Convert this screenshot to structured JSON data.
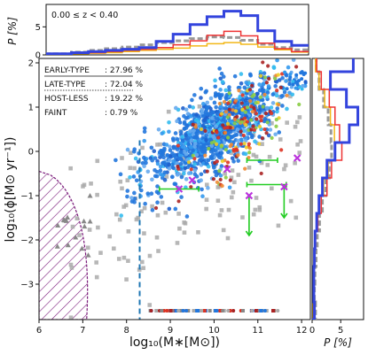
{
  "chart_data": {
    "type": "scatter",
    "annotation_z": "0.00 ≤ z < 0.40",
    "xlabel": "log₁₀(M∗[M⊙])",
    "ylabel": "log₁₀(ϕ[M⊙ yr⁻¹])",
    "top_ylabel": "P [%]",
    "right_xlabel": "P [%]",
    "xlim": [
      6,
      12.2
    ],
    "ylim": [
      -3.8,
      2.1
    ],
    "top_ylim": [
      0,
      9
    ],
    "right_xlim": [
      0,
      9
    ],
    "x_ticks": [
      {
        "v": 6,
        "label": "6"
      },
      {
        "v": 7,
        "label": "7"
      },
      {
        "v": 8,
        "label": "8"
      },
      {
        "v": 9,
        "label": "9"
      },
      {
        "v": 10,
        "label": "10"
      },
      {
        "v": 11,
        "label": "11"
      },
      {
        "v": 12,
        "label": "12"
      }
    ],
    "y_ticks": [
      {
        "v": -3,
        "label": "−3"
      },
      {
        "v": -2,
        "label": "−2"
      },
      {
        "v": -1,
        "label": "−1"
      },
      {
        "v": 0,
        "label": "0"
      },
      {
        "v": 1,
        "label": "1"
      },
      {
        "v": 2,
        "label": "2"
      }
    ],
    "top_y_ticks": [
      {
        "v": 0,
        "label": "0"
      },
      {
        "v": 5,
        "label": "5"
      }
    ],
    "right_x_ticks": [
      {
        "v": 0,
        "label": "0"
      },
      {
        "v": 5,
        "label": "5"
      }
    ],
    "legend": [
      {
        "label": "EARLY-TYPE",
        "value": ": 27.96  %",
        "style": "solid"
      },
      {
        "label": "LATE-TYPE",
        "value": ":  72.04 %",
        "style": "solid"
      },
      {
        "label": "HOST-LESS",
        "value": ": 19.22 %",
        "style": "dotted"
      },
      {
        "label": "FAINT",
        "value": ":  0.79  %",
        "style": "none"
      }
    ],
    "mass_completeness_x": 8.3,
    "colors": {
      "blue": "#3344dd",
      "grey": "#999999",
      "red": "#ee3333",
      "yellow": "#f2b818",
      "purple": "#7a1a7a",
      "green": "#22cc22",
      "magenta": "#bb33dd",
      "dash": "#1f77b4",
      "points_blue": "#2277dd",
      "points_cyan": "#33bbee"
    },
    "highlight_crosses": [
      {
        "x": 9.2,
        "y": -0.85
      },
      {
        "x": 10.8,
        "y": -1.0
      },
      {
        "x": 11.6,
        "y": -0.8
      },
      {
        "x": 11.9,
        "y": -0.15
      },
      {
        "x": 10.3,
        "y": -0.4
      },
      {
        "x": 9.5,
        "y": -0.65
      }
    ],
    "green_points": [
      {
        "x": 9.2,
        "y": -0.85,
        "xerr": 0.45,
        "up": 0,
        "down": 0
      },
      {
        "x": 10.8,
        "y": -1.0,
        "xerr": 0,
        "up": 0,
        "down": 0.9
      },
      {
        "x": 11.6,
        "y": -0.8,
        "xerr": 0.0,
        "up": 0,
        "down": 0.7
      },
      {
        "x": 11.2,
        "y": -0.75,
        "xerr": 0.45,
        "up": 0,
        "down": 0
      },
      {
        "x": 11.1,
        "y": -0.2,
        "xerr": 0.35,
        "up": 0,
        "down": 0
      }
    ],
    "top_hist": {
      "bin_edges": [
        6.0,
        6.6,
        7.0,
        7.4,
        7.8,
        8.2,
        8.6,
        9.0,
        9.4,
        9.8,
        10.2,
        10.6,
        11.0,
        11.4,
        11.8,
        12.2
      ],
      "series": [
        {
          "color": "blue",
          "values": [
            0.2,
            0.4,
            0.6,
            0.8,
            1.0,
            1.3,
            2.4,
            3.7,
            5.4,
            6.8,
            7.8,
            7.0,
            4.3,
            2.4,
            1.7
          ]
        },
        {
          "color": "red",
          "values": [
            0.1,
            0.3,
            0.4,
            0.6,
            0.8,
            1.0,
            1.3,
            1.8,
            2.5,
            3.5,
            4.2,
            3.4,
            2.1,
            1.1,
            0.6
          ]
        },
        {
          "color": "yellow",
          "values": [
            0.1,
            0.2,
            0.3,
            0.4,
            0.6,
            0.8,
            1.0,
            1.2,
            1.6,
            2.0,
            2.2,
            1.9,
            1.4,
            0.9,
            0.5
          ]
        },
        {
          "color": "grey",
          "values": [
            0.2,
            0.5,
            0.8,
            1.1,
            1.4,
            1.8,
            2.2,
            2.5,
            2.9,
            3.2,
            3.1,
            2.6,
            1.9,
            1.3,
            0.9
          ],
          "dashed": true
        }
      ]
    },
    "right_hist": {
      "bin_edges": [
        -3.8,
        -3.4,
        -3.0,
        -2.6,
        -2.2,
        -1.8,
        -1.4,
        -1.0,
        -0.6,
        -0.2,
        0.2,
        0.6,
        1.0,
        1.4,
        1.8,
        2.1
      ],
      "series": [
        {
          "color": "blue",
          "values": [
            0.4,
            0.3,
            0.3,
            0.4,
            0.5,
            0.8,
            1.2,
            1.8,
            2.6,
            4.0,
            6.5,
            8.0,
            6.0,
            3.2,
            7.2
          ]
        },
        {
          "color": "red",
          "values": [
            0.3,
            0.2,
            0.3,
            0.4,
            0.6,
            1.0,
            1.6,
            2.6,
            3.4,
            5.2,
            4.8,
            4.0,
            3.0,
            1.6,
            0.8
          ]
        },
        {
          "color": "yellow",
          "values": [
            0.2,
            0.2,
            0.2,
            0.3,
            0.5,
            0.8,
            1.3,
            2.0,
            2.8,
            4.0,
            3.9,
            3.2,
            2.2,
            1.2,
            0.6
          ]
        },
        {
          "color": "grey",
          "values": [
            0.6,
            0.4,
            0.5,
            0.7,
            0.9,
            1.3,
            1.8,
            2.4,
            3.0,
            3.4,
            3.3,
            2.8,
            2.0,
            1.2,
            0.7
          ],
          "dashed": true
        }
      ]
    }
  }
}
